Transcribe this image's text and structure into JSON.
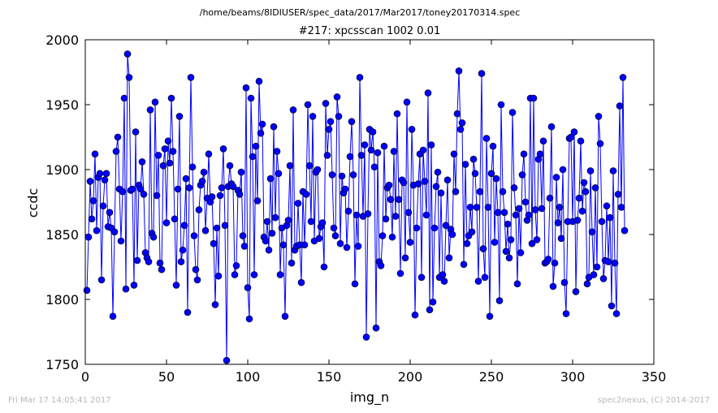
{
  "file_path": "/home/beams/8IDIUSER/spec_data/2017/Mar2017/toney20170314.spec",
  "footer_left": "Fri Mar 17 14:05:41 2017",
  "footer_right": "spec2nexus, (C) 2014-2017",
  "colors": {
    "series": "#0000ff"
  },
  "chart_data": {
    "type": "line",
    "title": "#217: xpcsscan 1002 0.01",
    "xlabel": "img_n",
    "ylabel": "ccdc",
    "xlim": [
      0,
      350
    ],
    "ylim": [
      1750,
      2000
    ],
    "xticks": [
      0,
      50,
      100,
      150,
      200,
      250,
      300,
      350
    ],
    "yticks": [
      1750,
      1800,
      1850,
      1900,
      1950,
      2000
    ],
    "marker": "circle",
    "series": [
      {
        "values": [
          1807,
          1848,
          1891,
          1862,
          1876,
          1912,
          1853,
          1894,
          1897,
          1815,
          1872,
          1892,
          1897,
          1856,
          1867,
          1855,
          1787,
          1852,
          1914,
          1925,
          1885,
          1845,
          1883,
          1955,
          1808,
          1989,
          1971,
          1884,
          1885,
          1811,
          1929,
          1830,
          1888,
          1885,
          1906,
          1881,
          1836,
          1832,
          1829,
          1946,
          1851,
          1848,
          1952,
          1880,
          1911,
          1828,
          1823,
          1903,
          1916,
          1859,
          1922,
          1905,
          1955,
          1914,
          1862,
          1811,
          1885,
          1941,
          1829,
          1838,
          1857,
          1893,
          1790,
          1886,
          1971,
          1902,
          1849,
          1823,
          1815,
          1869,
          1888,
          1891,
          1898,
          1853,
          1878,
          1912,
          1875,
          1879,
          1843,
          1796,
          1855,
          1818,
          1880,
          1886,
          1916,
          1857,
          1753,
          1887,
          1903,
          1889,
          1887,
          1819,
          1826,
          1884,
          1881,
          1898,
          1849,
          1841,
          1963,
          1809,
          1785,
          1955,
          1910,
          1819,
          1918,
          1876,
          1968,
          1928,
          1935,
          1848,
          1845,
          1860,
          1838,
          1893,
          1851,
          1933,
          1863,
          1914,
          1897,
          1819,
          1855,
          1842,
          1787,
          1857,
          1861,
          1903,
          1828,
          1946,
          1838,
          1841,
          1874,
          1842,
          1813,
          1883,
          1842,
          1881,
          1950,
          1903,
          1860,
          1941,
          1845,
          1898,
          1900,
          1847,
          1856,
          1859,
          1825,
          1951,
          1911,
          1931,
          1937,
          1896,
          1855,
          1849,
          1956,
          1941,
          1843,
          1895,
          1882,
          1885,
          1840,
          1868,
          1910,
          1937,
          1896,
          1812,
          1865,
          1841,
          1971,
          1911,
          1864,
          1919,
          1771,
          1866,
          1931,
          1915,
          1929,
          1902,
          1778,
          1913,
          1829,
          1826,
          1849,
          1918,
          1862,
          1886,
          1888,
          1877,
          1848,
          1914,
          1864,
          1943,
          1877,
          1820,
          1892,
          1890,
          1832,
          1952,
          1867,
          1844,
          1931,
          1888,
          1788,
          1855,
          1889,
          1912,
          1817,
          1915,
          1891,
          1865,
          1959,
          1792,
          1919,
          1798,
          1855,
          1887,
          1898,
          1817,
          1882,
          1819,
          1814,
          1857,
          1892,
          1832,
          1854,
          1850,
          1912,
          1883,
          1943,
          1976,
          1931,
          1936,
          1827,
          1904,
          1843,
          1849,
          1871,
          1852,
          1908,
          1897,
          1871,
          1814,
          1883,
          1974,
          1839,
          1817,
          1924,
          1871,
          1787,
          1897,
          1918,
          1844,
          1893,
          1867,
          1799,
          1950,
          1883,
          1867,
          1837,
          1858,
          1832,
          1846,
          1944,
          1886,
          1865,
          1812,
          1870,
          1836,
          1896,
          1912,
          1875,
          1861,
          1865,
          1955,
          1843,
          1955,
          1869,
          1846,
          1908,
          1912,
          1870,
          1922,
          1828,
          1829,
          1831,
          1878,
          1933,
          1810,
          1828,
          1894,
          1859,
          1871,
          1847,
          1900,
          1813,
          1789,
          1860,
          1924,
          1925,
          1860,
          1929,
          1806,
          1861,
          1878,
          1922,
          1868,
          1890,
          1883,
          1812,
          1817,
          1899,
          1852,
          1819,
          1886,
          1825,
          1941,
          1920,
          1860,
          1816,
          1830,
          1872,
          1829,
          1863,
          1795,
          1899,
          1828,
          1789,
          1881,
          1949,
          1871,
          1971,
          1853
        ]
      }
    ]
  }
}
